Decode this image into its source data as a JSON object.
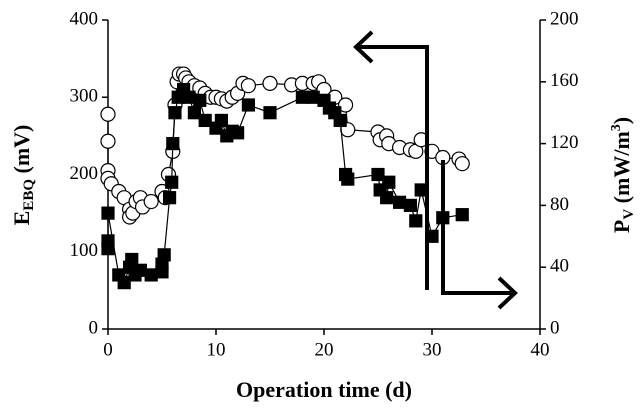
{
  "chart_data": {
    "type": "scatter-line",
    "x_label": "Operation time (d)",
    "y_label": "E",
    "y_label_sub": "EBQ",
    "y_label_unit": " (mV)",
    "y2_label": "P",
    "y2_label_sub": "V",
    "y2_label_unit": " (mW/m",
    "y2_label_sup": "3",
    "y2_label_end": ")",
    "xlim": [
      0,
      40
    ],
    "xticks": [
      0,
      10,
      20,
      30,
      40
    ],
    "ylim": [
      0,
      400
    ],
    "yticks": [
      0,
      100,
      200,
      300,
      400
    ],
    "y2lim": [
      0,
      200
    ],
    "y2ticks": [
      0,
      40,
      80,
      120,
      160,
      200
    ],
    "series": [
      {
        "marker": "circle",
        "color": "#000000",
        "fill": "#ffffff",
        "axis": "y",
        "x": [
          0,
          0,
          0,
          0,
          0.3,
          1,
          1.5,
          2,
          2,
          2.3,
          2.6,
          3,
          3.2,
          4,
          5,
          5.3,
          5.6,
          6,
          6.2,
          6.4,
          6.6,
          7,
          7.2,
          7.5,
          8,
          8.5,
          9,
          9.5,
          10,
          10.5,
          11,
          11.5,
          12,
          12.5,
          13,
          15,
          17,
          18,
          19,
          19.5,
          20,
          21,
          22,
          22.2,
          25,
          25.2,
          25.8,
          26,
          27,
          28,
          28.5,
          29,
          30,
          31,
          32.5,
          32.8
        ],
        "values": [
          278,
          243,
          205,
          195,
          188,
          178,
          170,
          155,
          145,
          150,
          165,
          170,
          158,
          165,
          178,
          170,
          200,
          230,
          290,
          320,
          330,
          330,
          325,
          320,
          315,
          312,
          305,
          300,
          300,
          298,
          295,
          300,
          305,
          318,
          315,
          318,
          316,
          318,
          318,
          320,
          310,
          300,
          290,
          258,
          255,
          245,
          250,
          240,
          235,
          232,
          230,
          245,
          230,
          222,
          220,
          214
        ]
      },
      {
        "marker": "square",
        "color": "#000000",
        "fill": "#000000",
        "axis": "y2",
        "x": [
          0,
          0,
          0,
          1,
          1.5,
          2,
          2.2,
          2.5,
          3,
          4,
          5,
          5,
          5.2,
          5.7,
          5.9,
          6,
          6.2,
          6.5,
          7,
          7.5,
          8,
          8.5,
          9,
          10,
          10.5,
          11,
          11.5,
          12,
          13,
          15,
          18,
          19,
          20,
          20.5,
          21,
          21.5,
          22,
          22.2,
          25,
          25.2,
          25.8,
          26,
          27,
          28,
          28.5,
          29,
          30,
          31,
          32.8
        ],
        "values": [
          57,
          52,
          75,
          35,
          30,
          40,
          45,
          35,
          38,
          35,
          37,
          42,
          48,
          85,
          95,
          120,
          140,
          150,
          155,
          150,
          140,
          148,
          135,
          130,
          135,
          125,
          128,
          127,
          145,
          140,
          150,
          150,
          148,
          143,
          140,
          135,
          100,
          97,
          100,
          90,
          85,
          95,
          82,
          80,
          70,
          90,
          60,
          72,
          74
        ]
      }
    ]
  }
}
